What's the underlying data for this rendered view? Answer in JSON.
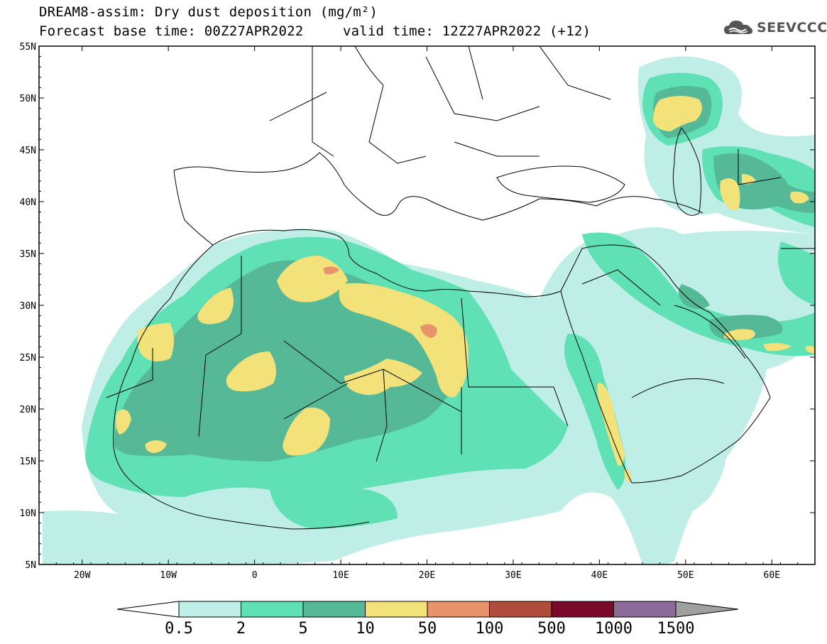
{
  "header": {
    "title_line1": "DREAM8-assim: Dry dust deposition (mg/m²)",
    "title_line2_left": "Forecast base time: 00Z27APR2022",
    "title_line2_right": "valid time: 12Z27APR2022 (+12)",
    "logo_text": "SEEVCCC",
    "logo_icon": "cloud-icon"
  },
  "map": {
    "lat_labels": [
      "55N",
      "50N",
      "45N",
      "40N",
      "35N",
      "30N",
      "25N",
      "20N",
      "15N",
      "10N",
      "5N"
    ],
    "lon_labels": [
      "20W",
      "10W",
      "0",
      "10E",
      "20E",
      "30E",
      "40E",
      "50E",
      "60E"
    ],
    "lon_range": [
      -25,
      65
    ],
    "lat_range": [
      5,
      55
    ]
  },
  "colorbar": {
    "labels": [
      "0.5",
      "2",
      "5",
      "10",
      "50",
      "100",
      "500",
      "1000",
      "1500"
    ],
    "colors": [
      "#bfeee6",
      "#5fe0b5",
      "#55b896",
      "#f3e27a",
      "#e8946b",
      "#b04c3c",
      "#7a0a2a",
      "#8c6a9a"
    ],
    "under_color": "#ffffff",
    "over_color": "#a0a0a0"
  }
}
